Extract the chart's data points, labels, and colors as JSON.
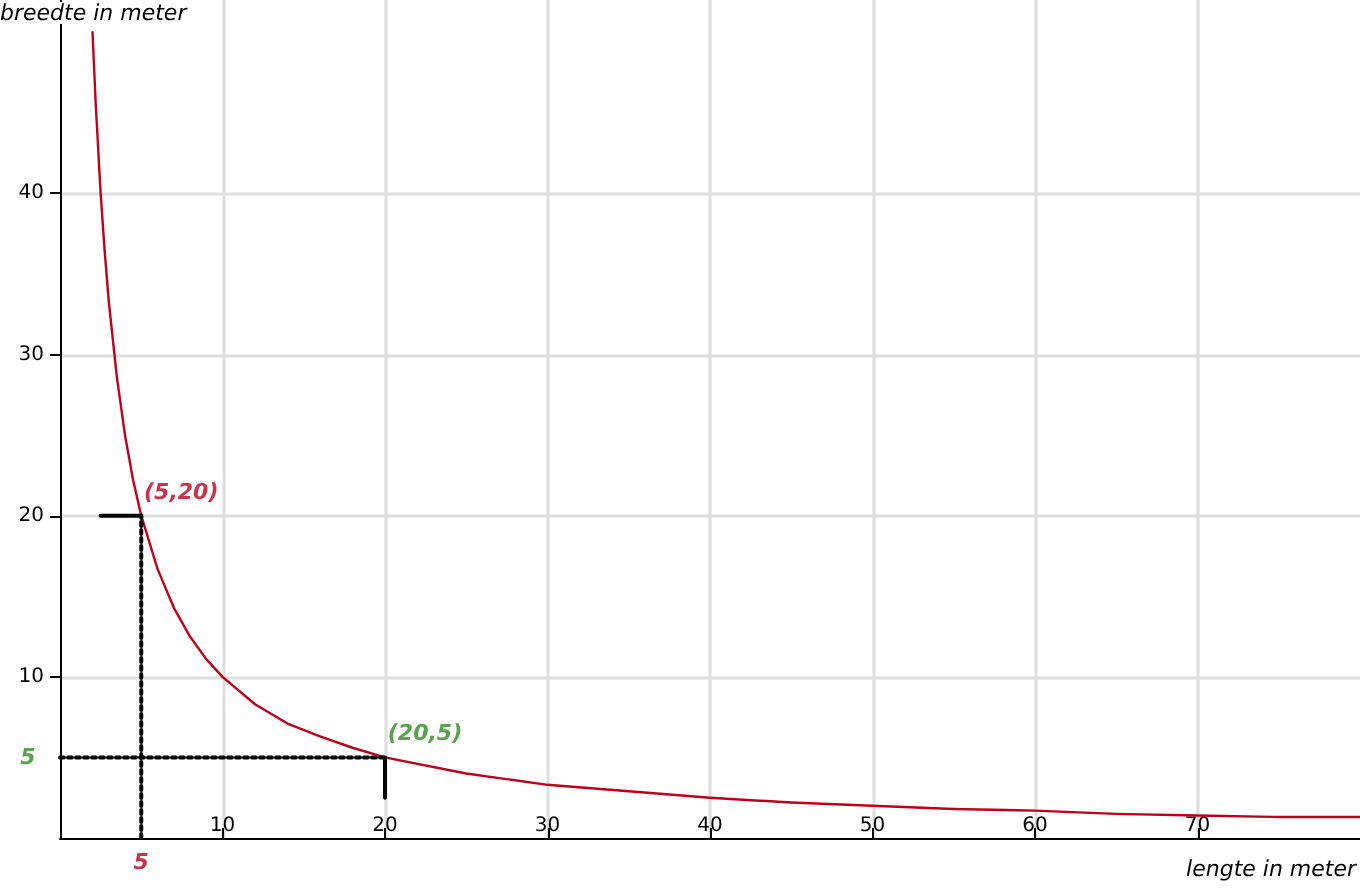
{
  "chart_data": {
    "type": "line",
    "xlabel": "lengte in meter",
    "ylabel": "breedte in meter",
    "xlim": [
      0,
      80
    ],
    "ylim": [
      0,
      52
    ],
    "xticks": [
      10,
      20,
      30,
      40,
      50,
      60,
      70
    ],
    "yticks": [
      10,
      20,
      30,
      40
    ],
    "grid": true,
    "series": [
      {
        "color": "#c0001a",
        "line_style": "solid",
        "x": [
          2,
          2.2,
          2.5,
          2.75,
          3,
          3.5,
          4,
          4.5,
          5,
          6,
          7,
          8,
          9,
          10,
          12,
          14,
          16,
          18,
          20,
          25,
          30,
          35,
          40,
          45,
          50,
          55,
          60,
          65,
          70,
          75,
          80
        ],
        "values": [
          50,
          45.5,
          40,
          36.4,
          33.3,
          28.6,
          25,
          22.2,
          20,
          16.7,
          14.3,
          12.5,
          11.1,
          10,
          8.3,
          7.1,
          6.3,
          5.6,
          5,
          4,
          3.3,
          2.9,
          2.5,
          2.2,
          2,
          1.8,
          1.7,
          1.5,
          1.4,
          1.3,
          1.3
        ]
      },
      {
        "color": "#000000",
        "line_style": "dotted",
        "x": [
          5,
          5
        ],
        "values": [
          0,
          20
        ]
      },
      {
        "color": "#000000",
        "line_style": "solid",
        "x": [
          2.5,
          5
        ],
        "values": [
          20,
          20
        ]
      },
      {
        "color": "#000000",
        "line_style": "dotted",
        "x": [
          0,
          20
        ],
        "values": [
          5,
          5
        ]
      },
      {
        "color": "#000000",
        "line_style": "solid",
        "x": [
          20,
          20
        ],
        "values": [
          2.5,
          5
        ]
      }
    ],
    "annotations": [
      {
        "text": "(5,20)",
        "x": 5,
        "y": 20
      },
      {
        "text": "(20,5)",
        "x": 20,
        "y": 5
      },
      {
        "text": "5",
        "x": 5,
        "y": 0
      },
      {
        "text": "5",
        "x": 0,
        "y": 5
      }
    ]
  }
}
